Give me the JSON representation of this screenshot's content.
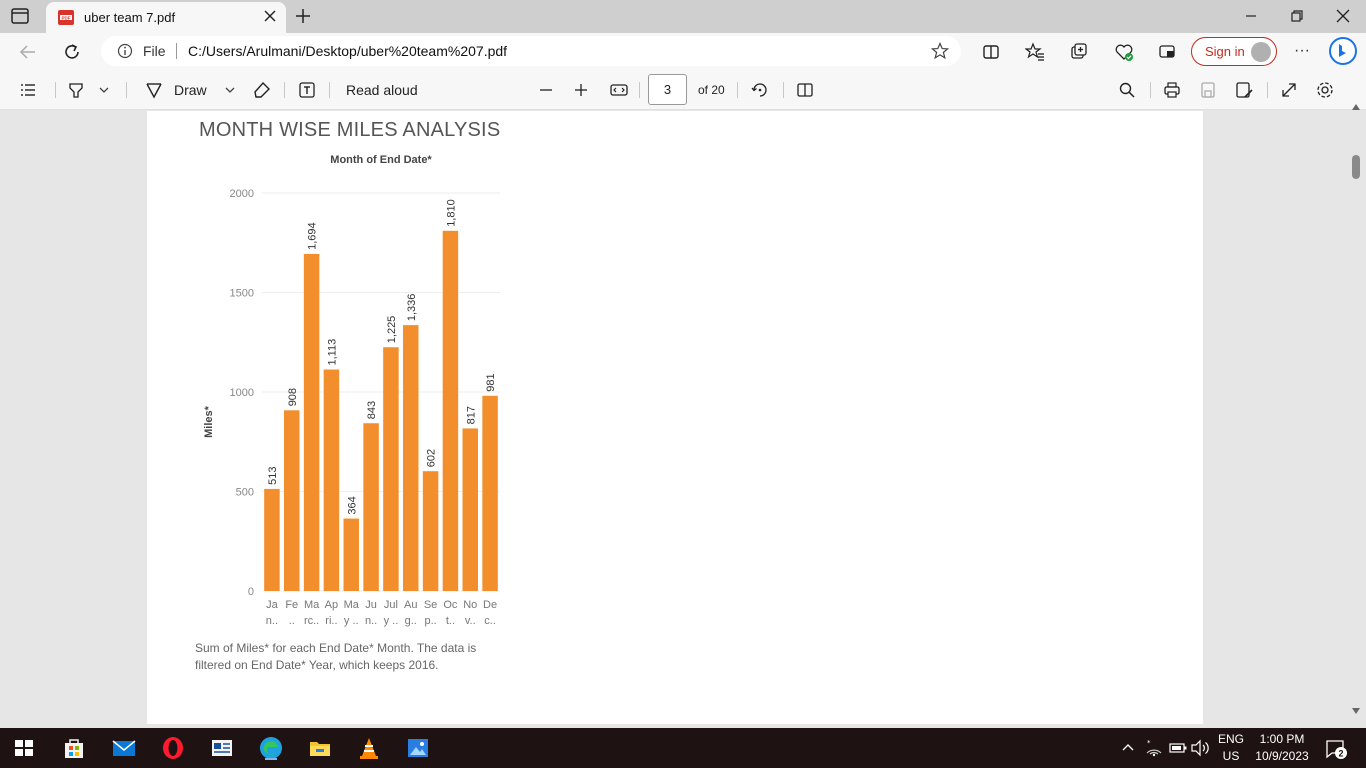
{
  "browser": {
    "tab_title": "uber team 7.pdf",
    "address_prefix": "File",
    "address_url": "C:/Users/Arulmani/Desktop/uber%20team%207.pdf",
    "signin_label": "Sign in"
  },
  "pdf_toolbar": {
    "draw_label": "Draw",
    "read_aloud_label": "Read aloud",
    "page_number": "3",
    "page_total_label": "of 20"
  },
  "report": {
    "title": "MONTH WISE MILES ANALYSIS",
    "caption_line1": "Sum of Miles* for each End Date* Month. The data is",
    "caption_line2": "filtered on End Date* Year, which keeps 2016."
  },
  "chart_data": {
    "type": "bar",
    "title": "Month of End Date*",
    "ylabel": "Miles*",
    "xlabel": "",
    "ylim": [
      0,
      2000
    ],
    "yticks": [
      0,
      500,
      1000,
      1500,
      2000
    ],
    "grid": true,
    "bar_color": "#f28e2b",
    "categories": [
      [
        "Ja",
        "n.."
      ],
      [
        "Fe",
        ".."
      ],
      [
        "Ma",
        "rc.."
      ],
      [
        "Ap",
        "ri.."
      ],
      [
        "Ma",
        "y .."
      ],
      [
        "Ju",
        "n.."
      ],
      [
        "Jul",
        "y .."
      ],
      [
        "Au",
        "g.."
      ],
      [
        "Se",
        "p.."
      ],
      [
        "Oc",
        "t.."
      ],
      [
        "No",
        "v.."
      ],
      [
        "De",
        "c.."
      ]
    ],
    "values": [
      513,
      908,
      1694,
      1113,
      364,
      843,
      1225,
      1336,
      602,
      1810,
      817,
      981
    ],
    "value_labels": [
      "513",
      "908",
      "1,694",
      "1,113",
      "364",
      "843",
      "1,225",
      "1,336",
      "602",
      "1,810",
      "817",
      "981"
    ]
  },
  "taskbar": {
    "language_line1": "ENG",
    "language_line2": "US",
    "time": "1:00 PM",
    "date": "10/9/2023",
    "notification_count": "2"
  },
  "colors": {
    "accent_red": "#c42b1c",
    "edge_blue": "#1a73e8",
    "taskbar_bg": "#1e1212"
  }
}
